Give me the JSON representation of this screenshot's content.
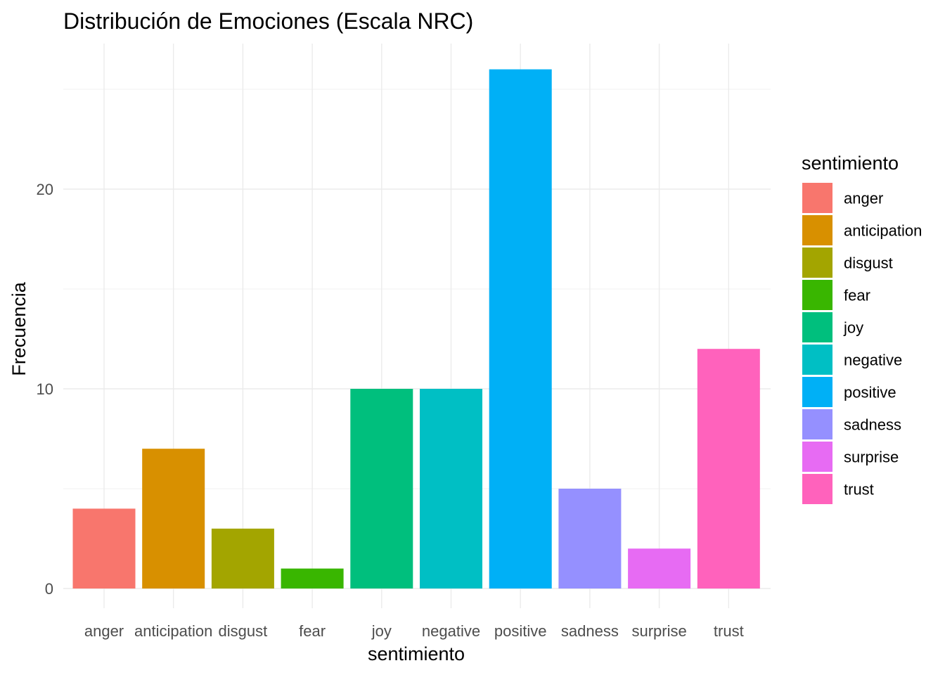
{
  "chart_data": {
    "type": "bar",
    "title": "Distribución de Emociones (Escala NRC)",
    "xlabel": "sentimiento",
    "ylabel": "Frecuencia",
    "categories": [
      "anger",
      "anticipation",
      "disgust",
      "fear",
      "joy",
      "negative",
      "positive",
      "sadness",
      "surprise",
      "trust"
    ],
    "values": [
      4,
      7,
      3,
      1,
      10,
      10,
      26,
      5,
      2,
      12
    ],
    "colors": [
      "#F8766D",
      "#D89000",
      "#A3A500",
      "#39B600",
      "#00BF7D",
      "#00BFC4",
      "#00B0F6",
      "#9590FF",
      "#E76BF3",
      "#FF62BC"
    ],
    "ylim": [
      0,
      27.3
    ],
    "yticks": [
      0,
      10,
      20
    ],
    "grid": true,
    "legend": {
      "title": "sentimiento",
      "position": "right",
      "entries": [
        "anger",
        "anticipation",
        "disgust",
        "fear",
        "joy",
        "negative",
        "positive",
        "sadness",
        "surprise",
        "trust"
      ]
    }
  }
}
